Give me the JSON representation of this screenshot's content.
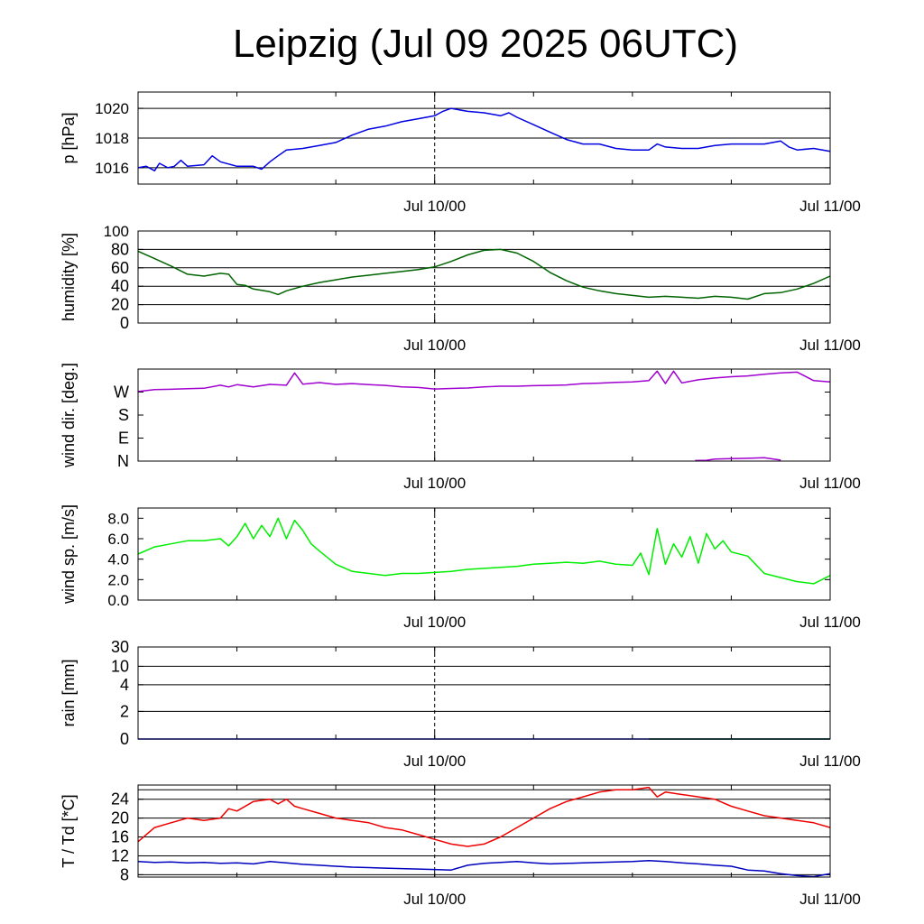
{
  "title": "Leipzig (Jul 09 2025 06UTC)",
  "chart_data": [
    {
      "type": "line",
      "ylabel": "p [hPa]",
      "ylim": [
        1014.9,
        1021.1
      ],
      "yticks": [
        1016,
        1018,
        1020
      ],
      "ytick_labels": [
        "1016",
        "1018",
        "1020"
      ],
      "grid": [
        1016,
        1018,
        1020
      ],
      "x_unit": "hours since Jul 09 06UTC",
      "xlim": [
        0,
        42
      ],
      "xtick_labels": [
        "Jul 10/00",
        "Jul 11/00"
      ],
      "series": [
        {
          "color": "#0000e0",
          "x": [
            0,
            0.5,
            1,
            1.3,
            1.8,
            2.2,
            2.6,
            3,
            4,
            4.5,
            5,
            6,
            6.5,
            7,
            7.5,
            8,
            8.5,
            9,
            10,
            11,
            12,
            13,
            14,
            15,
            16,
            17,
            18,
            18.5,
            19,
            20,
            21,
            22,
            22.5,
            23,
            24,
            25,
            26,
            27,
            28,
            29,
            30,
            31,
            31.5,
            32,
            33,
            34,
            35,
            36,
            37,
            38,
            39,
            39.5,
            40,
            41,
            42
          ],
          "y": [
            1016,
            1016.1,
            1015.8,
            1016.3,
            1016,
            1016.1,
            1016.5,
            1016.1,
            1016.2,
            1016.8,
            1016.4,
            1016.1,
            1016.1,
            1016.1,
            1015.9,
            1016.4,
            1016.8,
            1017.2,
            1017.3,
            1017.5,
            1017.7,
            1018.2,
            1018.6,
            1018.8,
            1019.1,
            1019.3,
            1019.5,
            1019.8,
            1020,
            1019.8,
            1019.7,
            1019.5,
            1019.7,
            1019.4,
            1018.9,
            1018.4,
            1017.9,
            1017.6,
            1017.6,
            1017.3,
            1017.2,
            1017.2,
            1017.6,
            1017.4,
            1017.3,
            1017.3,
            1017.5,
            1017.6,
            1017.6,
            1017.6,
            1017.8,
            1017.4,
            1017.2,
            1017.3,
            1017.1
          ]
        }
      ]
    },
    {
      "type": "line",
      "ylabel": "humidity [%]",
      "ylim": [
        0,
        100
      ],
      "yticks": [
        0,
        20,
        40,
        60,
        80,
        100
      ],
      "ytick_labels": [
        "0",
        "20",
        "40",
        "60",
        "80",
        "100"
      ],
      "grid": [
        20,
        40,
        60,
        80
      ],
      "x_unit": "hours since Jul 09 06UTC",
      "xlim": [
        0,
        42
      ],
      "xtick_labels": [
        "Jul 10/00",
        "Jul 11/00"
      ],
      "series": [
        {
          "color": "#006400",
          "x": [
            0,
            1,
            2,
            3,
            4,
            5,
            5.5,
            6,
            6.5,
            7,
            8,
            8.5,
            9,
            10,
            11,
            12,
            13,
            14,
            15,
            16,
            17,
            18,
            19,
            20,
            21,
            22,
            23,
            24,
            25,
            26,
            27,
            28,
            29,
            30,
            31,
            32,
            33,
            34,
            35,
            36,
            37,
            38,
            39,
            40,
            41,
            42
          ],
          "y": [
            78,
            70,
            62,
            53,
            51,
            54,
            53,
            42,
            41,
            37,
            34,
            31,
            35,
            40,
            44,
            47,
            50,
            52,
            54,
            56,
            58,
            61,
            67,
            74,
            79,
            80,
            76,
            67,
            55,
            46,
            39,
            35,
            32,
            30,
            28,
            29,
            28,
            27,
            29,
            28,
            26,
            32,
            33,
            37,
            43,
            51
          ]
        }
      ]
    },
    {
      "type": "line",
      "ylabel": "wind dir. [deg.]",
      "ylim": [
        0,
        360
      ],
      "yticks": [
        0,
        90,
        180,
        270
      ],
      "ytick_labels": [
        "N",
        "E",
        "S",
        "W"
      ],
      "grid": [],
      "x_unit": "hours since Jul 09 06UTC",
      "xlim": [
        0,
        42
      ],
      "xtick_labels": [
        "Jul 10/00",
        "Jul 11/00"
      ],
      "series": [
        {
          "color": "#a000d0",
          "x": [
            0,
            1,
            2,
            3,
            4,
            5,
            5.5,
            6,
            7,
            8,
            9,
            9.5,
            10,
            11,
            12,
            13,
            14,
            15,
            16,
            17,
            18,
            19,
            20,
            21,
            22,
            23,
            24,
            25,
            26,
            27,
            28,
            29,
            30,
            31,
            31.5,
            32,
            32.5,
            33,
            34,
            35,
            36,
            37,
            38,
            39,
            40,
            41,
            42
          ],
          "y": [
            272,
            280,
            281,
            283,
            285,
            297,
            290,
            299,
            290,
            300,
            297,
            345,
            301,
            307,
            300,
            303,
            299,
            296,
            290,
            288,
            282,
            284,
            286,
            290,
            293,
            293,
            295,
            296,
            298,
            303,
            305,
            308,
            310,
            315,
            352,
            303,
            352,
            306,
            318,
            325,
            330,
            333,
            340,
            345,
            348,
            315,
            310
          ]
        },
        {
          "color": "#a000d0",
          "x": [
            33.8,
            34.5,
            35,
            36,
            37,
            38,
            39
          ],
          "y": [
            2,
            3,
            8,
            10,
            11,
            13,
            4
          ]
        }
      ]
    },
    {
      "type": "line",
      "ylabel": "wind sp. [m/s]",
      "ylim": [
        0,
        9
      ],
      "yticks": [
        0,
        2,
        4,
        6,
        8
      ],
      "ytick_labels": [
        "0.0",
        "2.0",
        "4.0",
        "6.0",
        "8.0"
      ],
      "grid": [],
      "x_unit": "hours since Jul 09 06UTC",
      "xlim": [
        0,
        42
      ],
      "xtick_labels": [
        "Jul 10/00",
        "Jul 11/00"
      ],
      "series": [
        {
          "color": "#00ee00",
          "x": [
            0,
            1,
            2,
            3,
            4,
            5,
            5.5,
            6,
            6.5,
            7,
            7.5,
            8,
            8.5,
            9,
            9.5,
            10,
            10.5,
            11,
            12,
            13,
            14,
            15,
            16,
            17,
            18,
            19,
            20,
            21,
            22,
            23,
            24,
            25,
            26,
            27,
            28,
            29,
            30,
            30.5,
            31,
            31.5,
            32,
            32.5,
            33,
            33.5,
            34,
            34.5,
            35,
            35.5,
            36,
            37,
            38,
            39,
            40,
            41,
            42
          ],
          "y": [
            4.5,
            5.2,
            5.5,
            5.8,
            5.8,
            6,
            5.3,
            6.2,
            7.5,
            6,
            7.3,
            6.2,
            8,
            6,
            7.8,
            6.8,
            5.5,
            4.8,
            3.5,
            2.8,
            2.6,
            2.4,
            2.6,
            2.6,
            2.7,
            2.8,
            3,
            3.1,
            3.2,
            3.3,
            3.5,
            3.6,
            3.7,
            3.6,
            3.8,
            3.5,
            3.4,
            4.6,
            2.5,
            7.0,
            3.5,
            5.5,
            4.2,
            6.2,
            3.6,
            6.5,
            5.0,
            5.8,
            4.7,
            4.3,
            2.6,
            2.2,
            1.8,
            1.6,
            2.4
          ]
        }
      ]
    },
    {
      "type": "line",
      "ylabel": "rain [mm]",
      "ylim": [
        0,
        30
      ],
      "scale": "nonlinear",
      "yticks": [
        0,
        2,
        4,
        10,
        30
      ],
      "ytick_labels": [
        "0",
        "2",
        "4",
        "10",
        "30"
      ],
      "grid": [
        2,
        4,
        10,
        30
      ],
      "x_unit": "hours since Jul 09 06UTC",
      "xlim": [
        0,
        42
      ],
      "xtick_labels": [
        "Jul 10/00",
        "Jul 11/00"
      ],
      "series": [
        {
          "color": "#0000e0",
          "x": [
            0,
            42
          ],
          "y": [
            0,
            0
          ]
        },
        {
          "color": "#006400",
          "x": [
            31,
            42
          ],
          "y": [
            0,
            0
          ]
        }
      ]
    },
    {
      "type": "line",
      "ylabel": "T / Td [*C]",
      "ylim": [
        7.5,
        27
      ],
      "yticks": [
        8,
        12,
        16,
        20,
        24
      ],
      "ytick_labels": [
        "8",
        "12",
        "16",
        "20",
        "24"
      ],
      "grid": [
        8,
        12,
        16,
        20,
        24,
        26
      ],
      "x_unit": "hours since Jul 09 06UTC",
      "xlim": [
        0,
        42
      ],
      "xtick_labels": [
        "Jul 10/00",
        "Jul 11/00"
      ],
      "series": [
        {
          "color": "#ee0000",
          "x": [
            0,
            1,
            2,
            3,
            4,
            5,
            5.5,
            6,
            7,
            8,
            8.5,
            9,
            9.5,
            10,
            11,
            12,
            13,
            14,
            15,
            16,
            17,
            18,
            19,
            20,
            21,
            22,
            23,
            24,
            25,
            26,
            27,
            28,
            29,
            30,
            31,
            31.5,
            32,
            33,
            34,
            35,
            36,
            37,
            38,
            39,
            40,
            41,
            42
          ],
          "y": [
            15,
            18,
            19,
            20,
            19.5,
            20,
            22,
            21.5,
            23.5,
            24,
            23,
            24,
            22.5,
            22,
            21,
            20,
            19.5,
            19,
            18,
            17.5,
            16.5,
            15.5,
            14.5,
            14,
            14.5,
            16,
            18,
            20,
            22,
            23.5,
            24.5,
            25.5,
            26,
            26,
            26.5,
            24.5,
            25.5,
            25,
            24.5,
            24,
            22.5,
            21.5,
            20.5,
            20,
            19.5,
            19,
            18
          ]
        },
        {
          "color": "#0000c0",
          "x": [
            0,
            1,
            2,
            3,
            4,
            5,
            6,
            7,
            8,
            9,
            10,
            11,
            12,
            13,
            14,
            15,
            16,
            17,
            18,
            19,
            20,
            21,
            22,
            23,
            24,
            25,
            26,
            27,
            28,
            29,
            30,
            31,
            32,
            33,
            34,
            35,
            36,
            37,
            38,
            39,
            40,
            41,
            42
          ],
          "y": [
            10.8,
            10.6,
            10.7,
            10.5,
            10.6,
            10.4,
            10.5,
            10.3,
            10.8,
            10.5,
            10.2,
            10.0,
            9.8,
            9.6,
            9.5,
            9.4,
            9.3,
            9.2,
            9.1,
            9.0,
            10.0,
            10.4,
            10.6,
            10.8,
            10.5,
            10.3,
            10.4,
            10.5,
            10.6,
            10.7,
            10.8,
            11.0,
            10.8,
            10.5,
            10.3,
            10.0,
            9.8,
            9.0,
            8.8,
            8.2,
            7.8,
            7.6,
            8.2
          ]
        }
      ]
    }
  ]
}
